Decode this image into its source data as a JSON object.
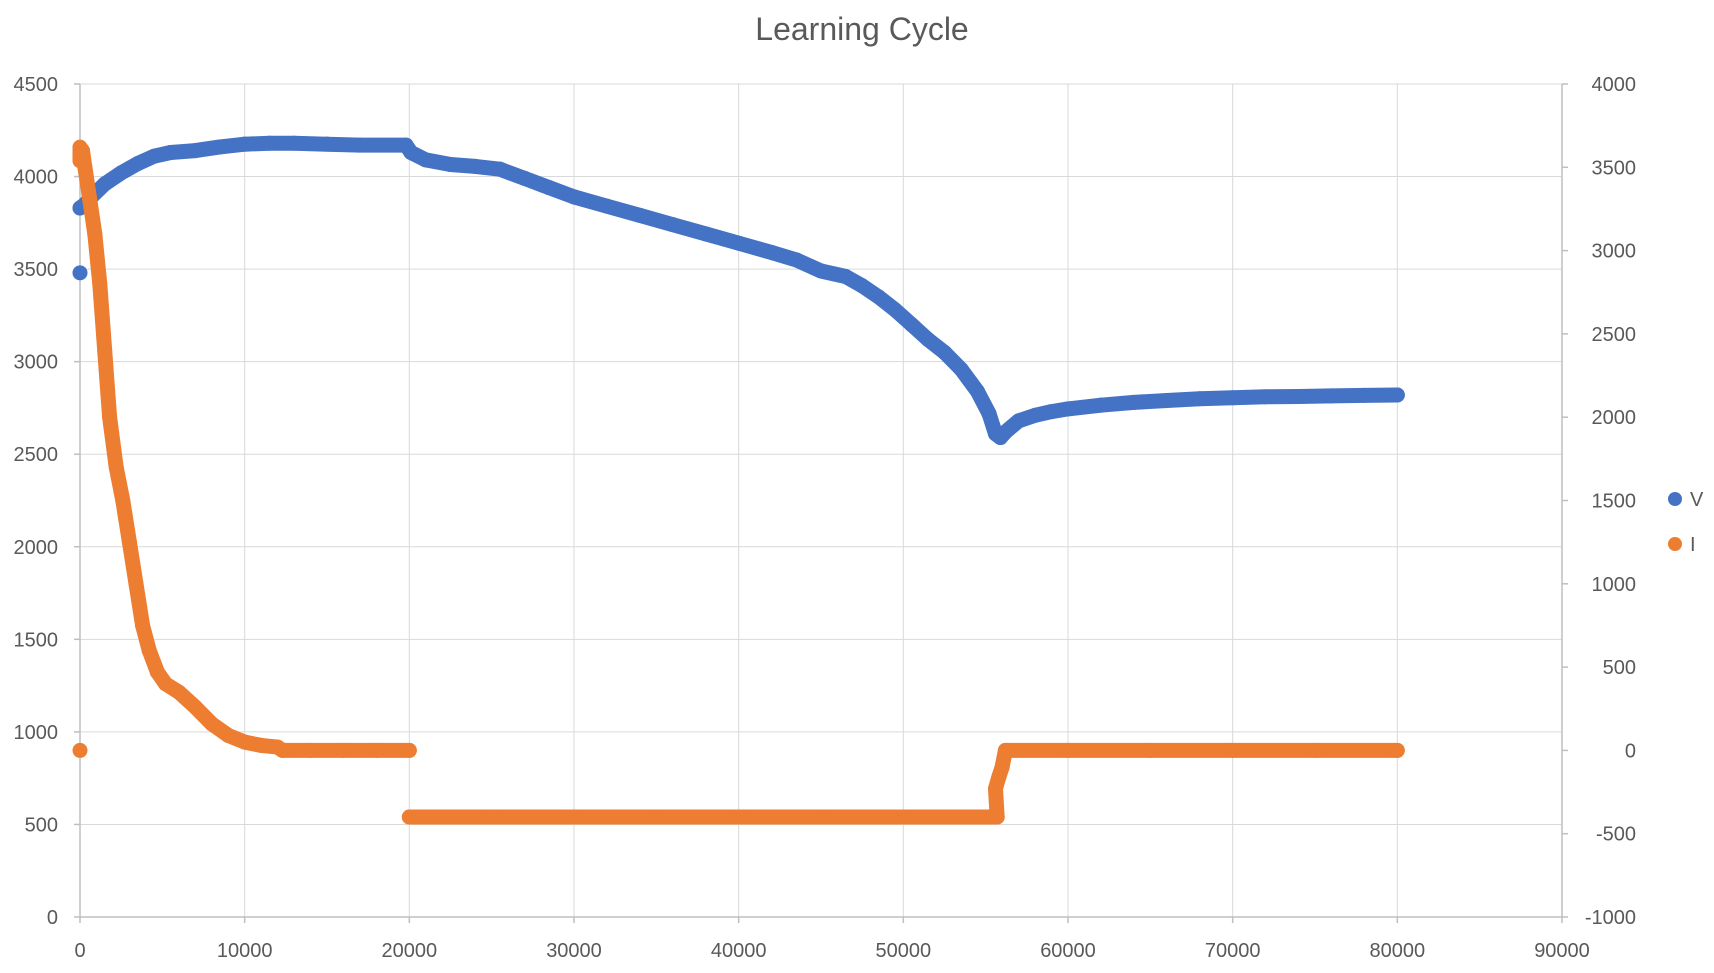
{
  "chart_data": {
    "type": "scatter",
    "title": "Learning Cycle",
    "xlabel": "",
    "ylabel": "",
    "y2label": "",
    "xlim": [
      0,
      90000
    ],
    "ylim": [
      0,
      4500
    ],
    "y2lim": [
      -1000,
      4000
    ],
    "x_ticks": [
      0,
      10000,
      20000,
      30000,
      40000,
      50000,
      60000,
      70000,
      80000,
      90000
    ],
    "y_ticks": [
      0,
      500,
      1000,
      1500,
      2000,
      2500,
      3000,
      3500,
      4000,
      4500
    ],
    "y2_ticks": [
      -1000,
      -500,
      0,
      500,
      1000,
      1500,
      2000,
      2500,
      3000,
      3500,
      4000
    ],
    "grid": true,
    "legend_position": "right",
    "series": [
      {
        "name": "V",
        "axis": "primary",
        "color": "#4472C4",
        "points": [
          [
            0,
            3480
          ],
          [
            0,
            3830
          ],
          [
            300,
            3850
          ],
          [
            800,
            3900
          ],
          [
            1500,
            3960
          ],
          [
            2500,
            4020
          ],
          [
            3500,
            4070
          ],
          [
            4500,
            4110
          ],
          [
            5500,
            4130
          ],
          [
            7000,
            4140
          ],
          [
            8500,
            4160
          ],
          [
            10000,
            4175
          ],
          [
            11500,
            4180
          ],
          [
            13000,
            4180
          ],
          [
            15000,
            4175
          ],
          [
            17000,
            4170
          ],
          [
            19800,
            4170
          ],
          [
            20100,
            4130
          ],
          [
            21000,
            4090
          ],
          [
            22500,
            4065
          ],
          [
            24000,
            4055
          ],
          [
            25500,
            4040
          ],
          [
            27000,
            3990
          ],
          [
            28500,
            3940
          ],
          [
            30000,
            3890
          ],
          [
            32000,
            3840
          ],
          [
            34000,
            3790
          ],
          [
            36000,
            3740
          ],
          [
            38000,
            3690
          ],
          [
            40000,
            3640
          ],
          [
            42000,
            3590
          ],
          [
            43500,
            3550
          ],
          [
            45000,
            3490
          ],
          [
            46500,
            3460
          ],
          [
            47500,
            3410
          ],
          [
            48500,
            3350
          ],
          [
            49500,
            3280
          ],
          [
            50500,
            3200
          ],
          [
            51500,
            3120
          ],
          [
            52500,
            3050
          ],
          [
            53500,
            2960
          ],
          [
            54500,
            2840
          ],
          [
            55200,
            2720
          ],
          [
            55600,
            2610
          ],
          [
            55900,
            2590
          ],
          [
            56200,
            2620
          ],
          [
            57000,
            2680
          ],
          [
            58000,
            2710
          ],
          [
            59000,
            2730
          ],
          [
            60000,
            2745
          ],
          [
            62000,
            2765
          ],
          [
            64000,
            2780
          ],
          [
            66000,
            2790
          ],
          [
            68000,
            2800
          ],
          [
            70000,
            2805
          ],
          [
            72000,
            2810
          ],
          [
            74000,
            2812
          ],
          [
            76000,
            2815
          ],
          [
            78000,
            2818
          ],
          [
            80000,
            2820
          ]
        ]
      },
      {
        "name": "I",
        "axis": "secondary",
        "color": "#ED7D31",
        "points": [
          [
            0,
            0
          ],
          [
            0,
            3540
          ],
          [
            0,
            3580
          ],
          [
            0,
            3620
          ],
          [
            150,
            3600
          ],
          [
            300,
            3500
          ],
          [
            600,
            3300
          ],
          [
            900,
            3100
          ],
          [
            1200,
            2800
          ],
          [
            1500,
            2400
          ],
          [
            1800,
            2000
          ],
          [
            2200,
            1700
          ],
          [
            2600,
            1500
          ],
          [
            3000,
            1250
          ],
          [
            3400,
            1000
          ],
          [
            3800,
            750
          ],
          [
            4200,
            600
          ],
          [
            4700,
            470
          ],
          [
            5200,
            400
          ],
          [
            6000,
            350
          ],
          [
            7000,
            260
          ],
          [
            8000,
            160
          ],
          [
            9000,
            90
          ],
          [
            10000,
            50
          ],
          [
            11000,
            30
          ],
          [
            12000,
            20
          ],
          [
            12300,
            0
          ],
          [
            14000,
            0
          ],
          [
            16000,
            0
          ],
          [
            18000,
            0
          ],
          [
            20000,
            0
          ],
          [
            20000,
            -400
          ],
          [
            25000,
            -400
          ],
          [
            30000,
            -400
          ],
          [
            35000,
            -400
          ],
          [
            40000,
            -400
          ],
          [
            45000,
            -400
          ],
          [
            50000,
            -400
          ],
          [
            55700,
            -400
          ],
          [
            55600,
            -230
          ],
          [
            55800,
            -160
          ],
          [
            56000,
            -100
          ],
          [
            56200,
            0
          ],
          [
            60000,
            0
          ],
          [
            65000,
            0
          ],
          [
            70000,
            0
          ],
          [
            75000,
            0
          ],
          [
            80000,
            0
          ]
        ]
      }
    ]
  }
}
